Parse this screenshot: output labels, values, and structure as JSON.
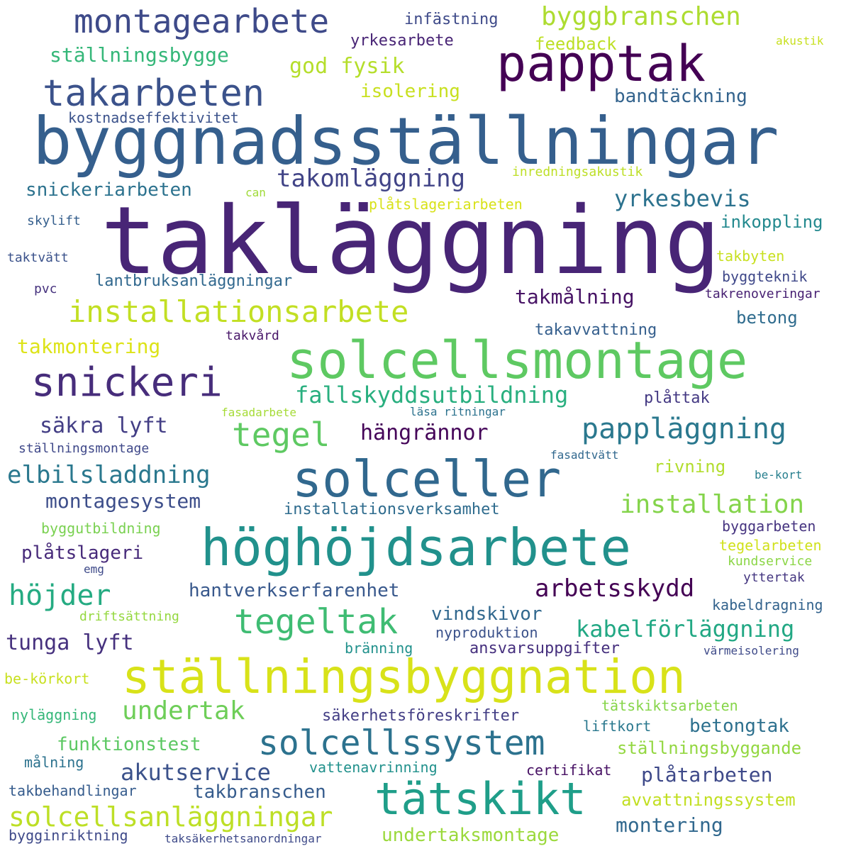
{
  "words": [
    {
      "text": "takläggning",
      "color": "#482576"
    },
    {
      "text": "byggnadsställningar",
      "color": "#355f8d"
    },
    {
      "text": "solcellsmontage",
      "color": "#5ec962"
    },
    {
      "text": "höghöjdsarbete",
      "color": "#21918c"
    },
    {
      "text": "ställningsbyggnation",
      "color": "#d8e219"
    },
    {
      "text": "solceller",
      "color": "#31688e"
    },
    {
      "text": "papptak",
      "color": "#440154"
    },
    {
      "text": "tätskikt",
      "color": "#1f9e89"
    },
    {
      "text": "takarbeten",
      "color": "#3b528b"
    },
    {
      "text": "snickeri",
      "color": "#472d7b"
    },
    {
      "text": "montagearbete",
      "color": "#3e4a89"
    },
    {
      "text": "solcellssystem",
      "color": "#2c728e"
    },
    {
      "text": "installationsarbete",
      "color": "#c2df23"
    },
    {
      "text": "tegeltak",
      "color": "#3fbc73"
    },
    {
      "text": "pappläggning",
      "color": "#2a788e"
    },
    {
      "text": "tegel",
      "color": "#5ec962"
    },
    {
      "text": "byggbranschen",
      "color": "#addc30"
    },
    {
      "text": "solcellsanläggningar",
      "color": "#bddf26"
    },
    {
      "text": "höjder",
      "color": "#25ab82"
    },
    {
      "text": "undertak",
      "color": "#6ece58"
    },
    {
      "text": "installation",
      "color": "#84d44b"
    },
    {
      "text": "arbetsskydd",
      "color": "#440154"
    },
    {
      "text": "elbilsladdning",
      "color": "#2a788e"
    },
    {
      "text": "takomläggning",
      "color": "#414487"
    },
    {
      "text": "fallskyddsutbildning",
      "color": "#29af7f"
    },
    {
      "text": "kabelförläggning",
      "color": "#22a884"
    },
    {
      "text": "akutservice",
      "color": "#3b528b"
    },
    {
      "text": "yrkesbevis",
      "color": "#2c728e"
    },
    {
      "text": "ställningsbygge",
      "color": "#35b779"
    },
    {
      "text": "takmontering",
      "color": "#dde318"
    },
    {
      "text": "säkra lyft",
      "color": "#433e85"
    },
    {
      "text": "god fysik",
      "color": "#b5de2b"
    },
    {
      "text": "hängrännor",
      "color": "#450559"
    },
    {
      "text": "tunga lyft",
      "color": "#46317e"
    },
    {
      "text": "montagesystem",
      "color": "#3d4e8a"
    },
    {
      "text": "funktionstest",
      "color": "#5cc863"
    },
    {
      "text": "plåtslageri",
      "color": "#472a7a"
    },
    {
      "text": "hantverkserfarenhet",
      "color": "#38588c"
    },
    {
      "text": "takmålning",
      "color": "#471365"
    },
    {
      "text": "plåtarbeten",
      "color": "#3e4989"
    },
    {
      "text": "undertaksmontage",
      "color": "#9bd93c"
    },
    {
      "text": "vindskivor",
      "color": "#31688e"
    },
    {
      "text": "montering",
      "color": "#31688e"
    },
    {
      "text": "betongtak",
      "color": "#2d708e"
    },
    {
      "text": "avvattningssystem",
      "color": "#c2df23"
    },
    {
      "text": "ställningsbyggande",
      "color": "#93d741"
    },
    {
      "text": "takbranschen",
      "color": "#365c8d"
    },
    {
      "text": "isolering",
      "color": "#c8e020"
    },
    {
      "text": "bandtäckning",
      "color": "#33638d"
    },
    {
      "text": "snickeriarbeten",
      "color": "#2c728e"
    },
    {
      "text": "inkoppling",
      "color": "#23898e"
    },
    {
      "text": "rivning",
      "color": "#b2dd2d"
    },
    {
      "text": "betong",
      "color": "#2f6c8e"
    },
    {
      "text": "lantbruksanläggningar",
      "color": "#31688e"
    },
    {
      "text": "installationsverksamhet",
      "color": "#2f6c8e"
    },
    {
      "text": "takavvattning",
      "color": "#355f8d"
    },
    {
      "text": "ansvarsuppgifter",
      "color": "#46307e"
    },
    {
      "text": "plåttak",
      "color": "#443983"
    },
    {
      "text": "yrkesarbete",
      "color": "#482475"
    },
    {
      "text": "feedback",
      "color": "#bddf26"
    },
    {
      "text": "infästning",
      "color": "#3e4a89"
    },
    {
      "text": "kostnadseffektivitet",
      "color": "#3b528b"
    },
    {
      "text": "säkerhetsföreskrifter",
      "color": "#433e85"
    },
    {
      "text": "vattenavrinning",
      "color": "#21918c"
    },
    {
      "text": "byggutbildning",
      "color": "#7ad151"
    },
    {
      "text": "tätskiktsarbeten",
      "color": "#86d549"
    },
    {
      "text": "byggarbeten",
      "color": "#463480"
    },
    {
      "text": "tegelarbeten",
      "color": "#d0e11c"
    },
    {
      "text": "byggteknik",
      "color": "#3f4889"
    },
    {
      "text": "kabeldragning",
      "color": "#33638d"
    },
    {
      "text": "nyläggning",
      "color": "#35b779"
    },
    {
      "text": "liftkort",
      "color": "#2a788e"
    },
    {
      "text": "certifikat",
      "color": "#471164"
    },
    {
      "text": "nyproduktion",
      "color": "#3b528b"
    },
    {
      "text": "bränning",
      "color": "#21918c"
    },
    {
      "text": "takbehandlingar",
      "color": "#365c8d"
    },
    {
      "text": "bygginriktning",
      "color": "#3e4989"
    },
    {
      "text": "målning",
      "color": "#2c728e"
    },
    {
      "text": "kundservice",
      "color": "#8bd646"
    },
    {
      "text": "yttertak",
      "color": "#453781"
    },
    {
      "text": "taktvätt",
      "color": "#3b528b"
    },
    {
      "text": "pvc",
      "color": "#46327e"
    },
    {
      "text": "skylift",
      "color": "#355f8d"
    },
    {
      "text": "takbyten",
      "color": "#c8e020"
    },
    {
      "text": "takrenoveringar",
      "color": "#482173"
    },
    {
      "text": "inredningsakustik",
      "color": "#bddf26"
    },
    {
      "text": "plåtslageriarbeten",
      "color": "#d8e219"
    },
    {
      "text": "takvård",
      "color": "#481769"
    },
    {
      "text": "be-körkort",
      "color": "#c8e020"
    },
    {
      "text": "ställningsmontage",
      "color": "#3f4889"
    },
    {
      "text": "driftsättning",
      "color": "#95d840"
    },
    {
      "text": "värmeisolering",
      "color": "#3e4a89"
    },
    {
      "text": "taksäkerhetsanordningar",
      "color": "#3e4a89"
    },
    {
      "text": "fasadarbete",
      "color": "#a5db36"
    },
    {
      "text": "läsa ritningar",
      "color": "#2c728e"
    },
    {
      "text": "fasadtvätt",
      "color": "#31688e"
    },
    {
      "text": "be-kort",
      "color": "#277f8e"
    },
    {
      "text": "akustik",
      "color": "#c8e020"
    },
    {
      "text": "can",
      "color": "#a0da39"
    },
    {
      "text": "emg",
      "color": "#3e4a89"
    }
  ]
}
